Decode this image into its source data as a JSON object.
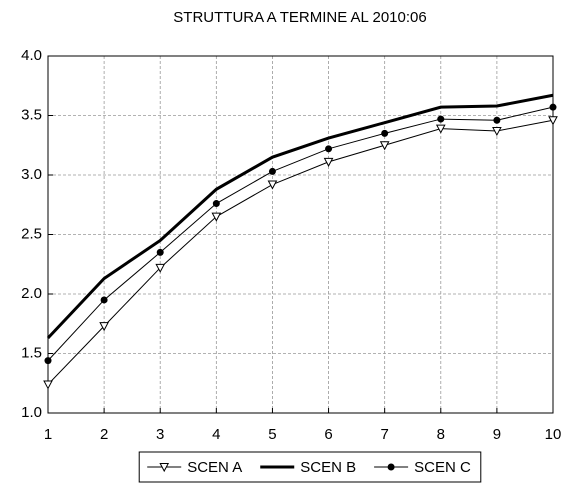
{
  "chart_data": {
    "type": "line",
    "title": "STRUTTURA A TERMINE AL 2010:06",
    "x": [
      1,
      2,
      3,
      4,
      5,
      6,
      7,
      8,
      9,
      10
    ],
    "xlim": [
      1,
      10
    ],
    "xticks": [
      1,
      2,
      3,
      4,
      5,
      6,
      7,
      8,
      9,
      10
    ],
    "ylim": [
      1.0,
      4.0
    ],
    "yticks": [
      {
        "value": 1.0,
        "label": "1.0"
      },
      {
        "value": 1.5,
        "label": "1.5"
      },
      {
        "value": 2.0,
        "label": "2.0"
      },
      {
        "value": 2.5,
        "label": "2.5"
      },
      {
        "value": 3.0,
        "label": "3.0"
      },
      {
        "value": 3.5,
        "label": "3.5"
      },
      {
        "value": 4.0,
        "label": "4.0"
      }
    ],
    "grid": true,
    "legend": "bottom",
    "series": [
      {
        "name": "SCEN A",
        "color": "#000000",
        "marker": "triangle-down",
        "line_width": 1,
        "values": [
          1.24,
          1.73,
          2.22,
          2.65,
          2.92,
          3.11,
          3.25,
          3.39,
          3.37,
          3.46
        ]
      },
      {
        "name": "SCEN B",
        "color": "#000000",
        "marker": "none",
        "line_width": 3,
        "values": [
          1.63,
          2.13,
          2.45,
          2.88,
          3.15,
          3.31,
          3.44,
          3.57,
          3.58,
          3.67
        ]
      },
      {
        "name": "SCEN C",
        "color": "#000000",
        "marker": "circle",
        "line_width": 1,
        "values": [
          1.44,
          1.95,
          2.35,
          2.76,
          3.03,
          3.22,
          3.35,
          3.47,
          3.46,
          3.57
        ]
      }
    ]
  }
}
